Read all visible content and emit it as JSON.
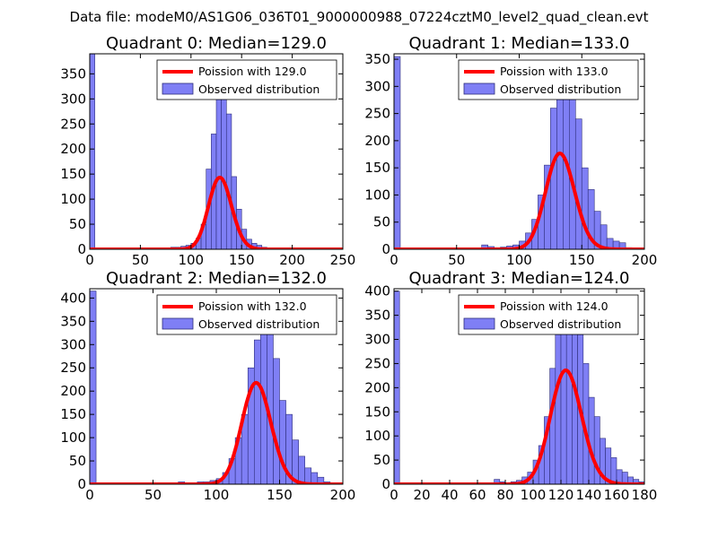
{
  "figure_title": "Data file: modeM0/AS1G06_036T01_9000000988_07224cztM0_level2_quad_clean.evt",
  "colors": {
    "bar_fill": "#7f7ff5",
    "bar_edge": "#2d2d7a",
    "poisson_line": "#ff0000",
    "background": "#ffffff"
  },
  "chart_data": [
    {
      "type": "bar",
      "title": "Quadrant 0: Median=129.0",
      "xlim": [
        0,
        250
      ],
      "ylim": [
        0,
        390
      ],
      "xticks": [
        0,
        50,
        100,
        150,
        200,
        250
      ],
      "yticks": [
        0,
        50,
        100,
        150,
        200,
        250,
        300,
        350
      ],
      "bin_width": 5,
      "bins": [
        [
          0,
          390
        ],
        [
          55,
          2
        ],
        [
          60,
          1
        ],
        [
          65,
          2
        ],
        [
          70,
          2
        ],
        [
          75,
          2
        ],
        [
          80,
          4
        ],
        [
          85,
          4
        ],
        [
          90,
          6
        ],
        [
          95,
          8
        ],
        [
          100,
          12
        ],
        [
          105,
          22
        ],
        [
          110,
          50
        ],
        [
          115,
          160
        ],
        [
          120,
          230
        ],
        [
          125,
          335
        ],
        [
          130,
          330
        ],
        [
          135,
          270
        ],
        [
          140,
          145
        ],
        [
          145,
          80
        ],
        [
          150,
          40
        ],
        [
          155,
          20
        ],
        [
          160,
          12
        ],
        [
          165,
          8
        ],
        [
          170,
          4
        ],
        [
          175,
          3
        ],
        [
          180,
          2
        ],
        [
          185,
          2
        ],
        [
          190,
          1
        ]
      ],
      "poisson_mean": 129.0,
      "poisson_scale": 1.9,
      "legend": {
        "location": "top-right",
        "line_label": "Poission with 129.0",
        "bar_label": "Observed distribution"
      }
    },
    {
      "type": "bar",
      "title": "Quadrant 1: Median=133.0",
      "xlim": [
        0,
        200
      ],
      "ylim": [
        0,
        360
      ],
      "xticks": [
        0,
        50,
        100,
        150,
        200
      ],
      "yticks": [
        0,
        50,
        100,
        150,
        200,
        250,
        300,
        350
      ],
      "bin_width": 5,
      "bins": [
        [
          0,
          355
        ],
        [
          70,
          8
        ],
        [
          75,
          5
        ],
        [
          80,
          3
        ],
        [
          85,
          4
        ],
        [
          90,
          6
        ],
        [
          95,
          8
        ],
        [
          100,
          15
        ],
        [
          105,
          30
        ],
        [
          110,
          55
        ],
        [
          115,
          100
        ],
        [
          120,
          155
        ],
        [
          125,
          260
        ],
        [
          130,
          340
        ],
        [
          135,
          330
        ],
        [
          140,
          280
        ],
        [
          145,
          240
        ],
        [
          150,
          150
        ],
        [
          155,
          110
        ],
        [
          160,
          70
        ],
        [
          165,
          45
        ],
        [
          170,
          20
        ],
        [
          175,
          15
        ],
        [
          180,
          12
        ],
        [
          185,
          3
        ]
      ],
      "poisson_mean": 133.0,
      "poisson_scale": 1.95,
      "legend": {
        "location": "top-right",
        "line_label": "Poission with 133.0",
        "bar_label": "Observed distribution"
      }
    },
    {
      "type": "bar",
      "title": "Quadrant 2: Median=132.0",
      "xlim": [
        0,
        200
      ],
      "ylim": [
        0,
        420
      ],
      "xticks": [
        0,
        50,
        100,
        150,
        200
      ],
      "yticks": [
        0,
        50,
        100,
        150,
        200,
        250,
        300,
        350,
        400
      ],
      "bin_width": 5,
      "bins": [
        [
          0,
          415
        ],
        [
          70,
          5
        ],
        [
          80,
          3
        ],
        [
          85,
          5
        ],
        [
          90,
          5
        ],
        [
          95,
          8
        ],
        [
          100,
          12
        ],
        [
          105,
          25
        ],
        [
          110,
          55
        ],
        [
          115,
          100
        ],
        [
          120,
          150
        ],
        [
          125,
          250
        ],
        [
          130,
          310
        ],
        [
          135,
          345
        ],
        [
          140,
          330
        ],
        [
          145,
          270
        ],
        [
          150,
          180
        ],
        [
          155,
          150
        ],
        [
          160,
          95
        ],
        [
          165,
          60
        ],
        [
          170,
          35
        ],
        [
          175,
          25
        ],
        [
          180,
          15
        ],
        [
          185,
          5
        ]
      ],
      "poisson_mean": 132.0,
      "poisson_scale": 2.2,
      "legend": {
        "location": "top-right",
        "line_label": "Poission with 132.0",
        "bar_label": "Observed distribution"
      }
    },
    {
      "type": "bar",
      "title": "Quadrant 3: Median=124.0",
      "xlim": [
        0,
        180
      ],
      "ylim": [
        0,
        405
      ],
      "xticks": [
        0,
        20,
        40,
        60,
        80,
        100,
        120,
        140,
        160,
        180
      ],
      "yticks": [
        0,
        50,
        100,
        150,
        200,
        250,
        300,
        350,
        400
      ],
      "bin_width": 4,
      "bins": [
        [
          0,
          400
        ],
        [
          72,
          10
        ],
        [
          76,
          5
        ],
        [
          80,
          3
        ],
        [
          84,
          5
        ],
        [
          88,
          8
        ],
        [
          92,
          15
        ],
        [
          96,
          25
        ],
        [
          100,
          50
        ],
        [
          104,
          80
        ],
        [
          108,
          140
        ],
        [
          112,
          240
        ],
        [
          116,
          310
        ],
        [
          120,
          350
        ],
        [
          124,
          370
        ],
        [
          128,
          360
        ],
        [
          132,
          310
        ],
        [
          136,
          250
        ],
        [
          140,
          180
        ],
        [
          144,
          140
        ],
        [
          148,
          95
        ],
        [
          152,
          75
        ],
        [
          156,
          55
        ],
        [
          160,
          30
        ],
        [
          164,
          25
        ],
        [
          168,
          15
        ],
        [
          172,
          10
        ],
        [
          176,
          5
        ]
      ],
      "poisson_mean": 124.0,
      "poisson_scale": 1.85,
      "legend": {
        "location": "top-right",
        "line_label": "Poission with 124.0",
        "bar_label": "Observed distribution"
      }
    }
  ]
}
